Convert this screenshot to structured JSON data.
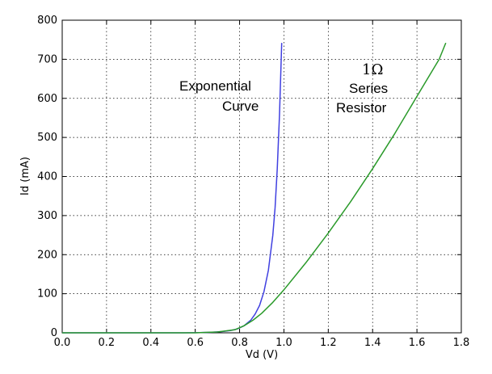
{
  "chart_data": {
    "type": "line",
    "xlabel": "Vd (V)",
    "ylabel": "Id (mA)",
    "xlim": [
      0.0,
      1.8
    ],
    "ylim": [
      0,
      800
    ],
    "grid": true,
    "grid_style": "dotted",
    "x_ticks": [
      "0.0",
      "0.2",
      "0.4",
      "0.6",
      "0.8",
      "1.0",
      "1.2",
      "1.4",
      "1.6",
      "1.8"
    ],
    "y_ticks": [
      "0",
      "100",
      "200",
      "300",
      "400",
      "500",
      "600",
      "700",
      "800"
    ],
    "series": [
      {
        "color": "#4040e0",
        "points": [
          [
            0.0,
            0
          ],
          [
            0.55,
            0
          ],
          [
            0.62,
            0.5
          ],
          [
            0.68,
            1.5
          ],
          [
            0.72,
            3
          ],
          [
            0.76,
            6
          ],
          [
            0.79,
            10
          ],
          [
            0.82,
            18
          ],
          [
            0.85,
            32
          ],
          [
            0.87,
            48
          ],
          [
            0.89,
            70
          ],
          [
            0.91,
            105
          ],
          [
            0.93,
            160
          ],
          [
            0.95,
            250
          ],
          [
            0.96,
            320
          ],
          [
            0.97,
            420
          ],
          [
            0.98,
            560
          ],
          [
            0.99,
            742
          ]
        ]
      },
      {
        "color": "#2a9a2a",
        "points": [
          [
            0.0,
            0
          ],
          [
            0.6,
            0
          ],
          [
            0.7,
            2
          ],
          [
            0.78,
            8
          ],
          [
            0.82,
            18
          ],
          [
            0.86,
            32
          ],
          [
            0.9,
            50
          ],
          [
            0.95,
            78
          ],
          [
            1.0,
            110
          ],
          [
            1.1,
            180
          ],
          [
            1.2,
            255
          ],
          [
            1.3,
            335
          ],
          [
            1.4,
            420
          ],
          [
            1.5,
            510
          ],
          [
            1.6,
            605
          ],
          [
            1.7,
            700
          ],
          [
            1.73,
            742
          ]
        ]
      }
    ],
    "annotations": [
      {
        "id": "exp1",
        "text": "Exponential"
      },
      {
        "id": "exp2",
        "text": "Curve"
      },
      {
        "id": "res1",
        "text": "1Ω"
      },
      {
        "id": "res2",
        "text": "Series"
      },
      {
        "id": "res3",
        "text": "Resistor"
      }
    ]
  }
}
